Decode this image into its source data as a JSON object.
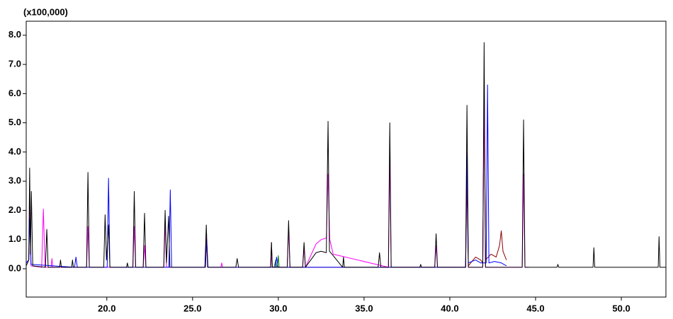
{
  "chart_data": {
    "type": "line",
    "y_axis_label": "(x100,000)",
    "xlim": [
      15.3,
      52.6
    ],
    "ylim": [
      -0.97,
      8.48
    ],
    "xticks": [
      {
        "value": 20,
        "label": "20.0"
      },
      {
        "value": 25,
        "label": "25.0"
      },
      {
        "value": 30,
        "label": "30.0"
      },
      {
        "value": 35,
        "label": "35.0"
      },
      {
        "value": 40,
        "label": "40.0"
      },
      {
        "value": 45,
        "label": "45.0"
      },
      {
        "value": 50,
        "label": "50.0"
      }
    ],
    "yticks": [
      {
        "value": 0,
        "label": "0.0"
      },
      {
        "value": 1,
        "label": "1.0"
      },
      {
        "value": 2,
        "label": "2.0"
      },
      {
        "value": 3,
        "label": "3.0"
      },
      {
        "value": 4,
        "label": "4.0"
      },
      {
        "value": 5,
        "label": "5.0"
      },
      {
        "value": 6,
        "label": "6.0"
      },
      {
        "value": 7,
        "label": "7.0"
      },
      {
        "value": 8,
        "label": "8.0"
      }
    ],
    "series": [
      {
        "color": "#008000",
        "x": [
          29.75,
          29.85,
          29.9,
          29.95,
          30.0,
          30.05,
          30.15
        ],
        "values": [
          0.05,
          0.3,
          0.05,
          0.1,
          0.45,
          0.05,
          0.05
        ]
      },
      {
        "color": "#8b0000",
        "x": [
          29.4,
          29.55,
          29.6,
          29.65,
          40.92,
          41.0,
          41.08,
          41.5,
          41.8,
          41.92,
          42.0,
          42.08,
          42.4,
          42.7,
          42.9,
          43.0,
          43.1,
          43.3
        ],
        "values": [
          0.05,
          0.05,
          0.9,
          0.05,
          0.05,
          3.0,
          0.1,
          0.4,
          0.3,
          0.2,
          6.0,
          0.3,
          0.5,
          0.4,
          0.8,
          1.3,
          0.6,
          0.3
        ]
      },
      {
        "color": "#ff00ff",
        "x": [
          15.3,
          15.45,
          15.5,
          15.58,
          16.2,
          16.3,
          16.4,
          16.75,
          16.8,
          16.85,
          18.82,
          18.9,
          18.98,
          21.52,
          21.6,
          21.68,
          22.12,
          22.2,
          22.28,
          23.32,
          23.4,
          23.48,
          25.72,
          25.8,
          25.88,
          26.65,
          26.7,
          26.75,
          29.55,
          29.6,
          29.65,
          30.52,
          30.6,
          30.68,
          31.42,
          31.5,
          31.58,
          32.2,
          32.5,
          32.8,
          32.9,
          33.0,
          33.2,
          36.42,
          36.5,
          36.58,
          39.12,
          39.2,
          39.28,
          40.92,
          41.0,
          41.08,
          41.92,
          42.0,
          42.08,
          44.22,
          44.3,
          44.38,
          44.6
        ],
        "values": [
          0.2,
          0.3,
          2.25,
          0.1,
          0.05,
          2.05,
          0.05,
          0.05,
          0.35,
          0.05,
          0.05,
          1.45,
          0.05,
          0.05,
          1.45,
          0.05,
          0.05,
          0.8,
          0.05,
          0.05,
          1.6,
          0.05,
          0.05,
          1.1,
          0.05,
          0.05,
          0.2,
          0.05,
          0.05,
          0.5,
          0.05,
          0.05,
          1.4,
          0.05,
          0.05,
          0.7,
          0.05,
          0.85,
          1.0,
          1.05,
          3.25,
          1.0,
          0.5,
          0.05,
          3.8,
          0.05,
          0.05,
          0.8,
          0.05,
          0.05,
          4.0,
          0.05,
          0.05,
          6.1,
          0.05,
          0.05,
          3.25,
          0.05,
          0.05
        ]
      },
      {
        "color": "#0000ff",
        "x": [
          15.3,
          15.45,
          15.5,
          15.58,
          18.12,
          18.2,
          18.28,
          20.02,
          20.1,
          20.18,
          23.62,
          23.7,
          23.78,
          25.75,
          25.82,
          25.9,
          29.82,
          29.9,
          29.98,
          40.92,
          41.0,
          41.08,
          41.5,
          41.8,
          42.12,
          42.2,
          42.28,
          42.6,
          43.0,
          43.3
        ],
        "values": [
          0.2,
          0.3,
          1.7,
          0.15,
          0.05,
          0.4,
          0.05,
          0.05,
          3.1,
          0.05,
          0.05,
          2.7,
          0.05,
          0.05,
          1.0,
          0.05,
          0.05,
          0.4,
          0.05,
          0.05,
          3.9,
          0.2,
          0.3,
          0.2,
          0.2,
          6.3,
          0.2,
          0.25,
          0.2,
          0.1
        ]
      },
      {
        "color": "#000000",
        "x": [
          15.3,
          15.45,
          15.5,
          15.55,
          15.6,
          15.68,
          16.42,
          16.5,
          16.58,
          17.25,
          17.3,
          17.35,
          17.95,
          18.0,
          18.05,
          18.82,
          18.9,
          18.98,
          19.82,
          19.9,
          19.98,
          20.1,
          20.18,
          21.15,
          21.2,
          21.25,
          21.52,
          21.6,
          21.68,
          22.12,
          22.2,
          22.28,
          23.32,
          23.4,
          23.48,
          23.6,
          23.68,
          25.72,
          25.8,
          25.88,
          27.52,
          27.6,
          27.68,
          29.55,
          29.6,
          29.65,
          30.52,
          30.6,
          30.68,
          31.42,
          31.5,
          31.58,
          32.2,
          32.5,
          32.8,
          32.9,
          32.98,
          33.2,
          33.75,
          33.8,
          33.85,
          35.82,
          35.9,
          35.98,
          36.42,
          36.5,
          36.58,
          38.25,
          38.3,
          38.35,
          39.12,
          39.2,
          39.28,
          40.92,
          41.0,
          41.08,
          41.92,
          42.0,
          42.08,
          44.22,
          44.3,
          44.38,
          46.25,
          46.3,
          46.35,
          48.35,
          48.4,
          48.45,
          52.15,
          52.2,
          52.25,
          52.6
        ],
        "values": [
          0.1,
          0.3,
          3.45,
          0.5,
          2.65,
          0.1,
          0.05,
          1.35,
          0.05,
          0.05,
          0.3,
          0.05,
          0.05,
          0.3,
          0.05,
          0.05,
          3.3,
          0.05,
          0.05,
          1.85,
          0.3,
          1.5,
          0.05,
          0.05,
          0.2,
          0.05,
          0.05,
          2.65,
          0.05,
          0.05,
          1.9,
          0.05,
          0.05,
          2.0,
          0.2,
          1.8,
          0.05,
          0.05,
          1.5,
          0.05,
          0.05,
          0.35,
          0.05,
          0.05,
          0.9,
          0.05,
          0.05,
          1.65,
          0.05,
          0.05,
          0.9,
          0.05,
          0.55,
          0.6,
          0.55,
          5.05,
          0.6,
          0.45,
          0.05,
          0.4,
          0.05,
          0.05,
          0.55,
          0.05,
          0.05,
          5.0,
          0.05,
          0.05,
          0.15,
          0.05,
          0.05,
          1.2,
          0.05,
          0.05,
          5.6,
          0.05,
          0.05,
          7.75,
          0.05,
          0.05,
          5.1,
          0.05,
          0.05,
          0.15,
          0.05,
          0.05,
          0.72,
          0.05,
          0.05,
          1.1,
          0.05,
          0.05
        ]
      }
    ]
  }
}
